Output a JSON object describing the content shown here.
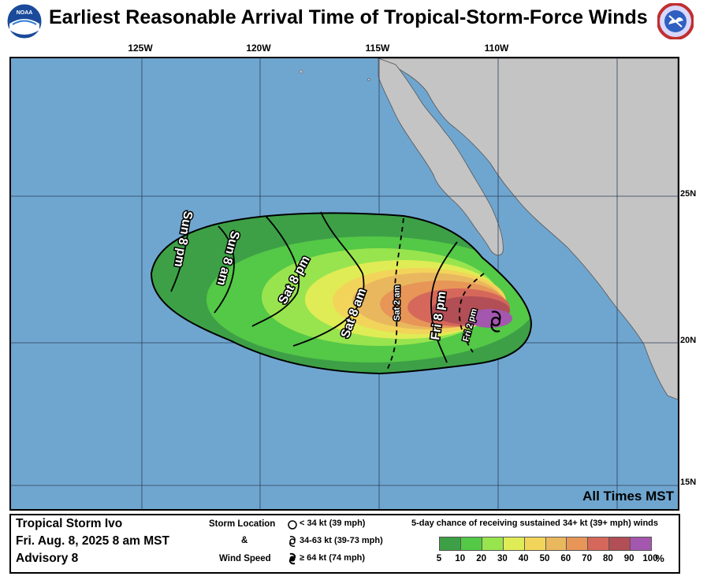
{
  "title": "Earliest Reasonable Arrival Time of Tropical-Storm-Force Winds",
  "logo_left": {
    "icon": "noaa-logo-icon",
    "text": "NOAA"
  },
  "logo_right": {
    "icon": "nws-logo-icon",
    "text": "NATIONAL WEATHER SERVICE"
  },
  "axes": {
    "longitude_labels": [
      "125W",
      "120W",
      "115W",
      "110W"
    ],
    "latitude_labels": [
      "25N",
      "20N",
      "15N"
    ]
  },
  "colors": {
    "ocean": "#6fa6d0",
    "land": "#c4c4c4",
    "gridline": "#2c3e5a"
  },
  "time_contours": [
    {
      "label": "Sun 8 pm"
    },
    {
      "label": "Sun 8 am"
    },
    {
      "label": "Sat 8 pm"
    },
    {
      "label": "Sat 8 am"
    },
    {
      "label": "Sat 2 am"
    },
    {
      "label": "Fri 8 pm"
    },
    {
      "label": "Fri 2 pm"
    }
  ],
  "time_zone_note": "All Times MST",
  "storm": {
    "name": "Tropical Storm Ivo",
    "datetime": "Fri. Aug. 8, 2025  8 am MST",
    "advisory": "Advisory 8",
    "symbol": "tropical-storm-symbol-icon"
  },
  "storm_legend": {
    "label_storm_location": "Storm Location",
    "label_and": "&",
    "label_wind_speed": "Wind Speed",
    "items": [
      {
        "icon": "depression-circle-icon",
        "text": "< 34 kt (39 mph)"
      },
      {
        "icon": "tropical-storm-symbol-icon",
        "text": "34-63 kt (39-73 mph)"
      },
      {
        "icon": "hurricane-symbol-icon",
        "text": "≥ 64 kt (74 mph)"
      }
    ]
  },
  "probability_legend": {
    "title": "5-day chance of receiving sustained 34+ kt (39+ mph) winds",
    "ticks": [
      "5",
      "10",
      "20",
      "30",
      "40",
      "50",
      "60",
      "70",
      "80",
      "90",
      "100"
    ],
    "unit": "%",
    "colors": [
      "#3da046",
      "#54c847",
      "#98e44e",
      "#e0ec55",
      "#f2d45a",
      "#e9b85e",
      "#e79658",
      "#d5685a",
      "#b24e55",
      "#a457ae"
    ]
  }
}
